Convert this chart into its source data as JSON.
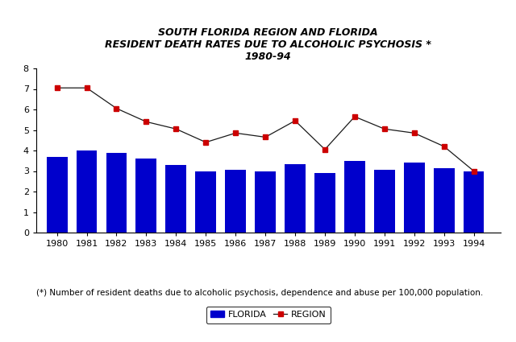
{
  "title_line1": "SOUTH FLORIDA REGION AND FLORIDA",
  "title_line2": "RESIDENT DEATH RATES DUE TO ALCOHOLIC PSYCHOSIS *",
  "title_line3": "1980-94",
  "years": [
    1980,
    1981,
    1982,
    1983,
    1984,
    1985,
    1986,
    1987,
    1988,
    1989,
    1990,
    1991,
    1992,
    1993,
    1994
  ],
  "florida_values": [
    3.7,
    4.0,
    3.9,
    3.6,
    3.3,
    3.0,
    3.05,
    3.0,
    3.35,
    2.9,
    3.5,
    3.05,
    3.4,
    3.15,
    3.0
  ],
  "region_values": [
    7.05,
    7.05,
    6.05,
    5.4,
    5.05,
    4.4,
    4.85,
    4.65,
    5.45,
    4.05,
    5.65,
    5.05,
    4.85,
    4.2,
    3.0
  ],
  "bar_color": "#0000CC",
  "line_color": "#1a1a1a",
  "marker": "s",
  "marker_color": "#CC0000",
  "marker_size": 4,
  "ylim": [
    0,
    8
  ],
  "yticks": [
    0,
    1,
    2,
    3,
    4,
    5,
    6,
    7,
    8
  ],
  "footnote": "(*) Number of resident deaths due to alcoholic psychosis, dependence and abuse per 100,000 population.",
  "legend_florida": "FLORIDA",
  "legend_region": "REGION",
  "background_color": "#ffffff",
  "title_fontsize": 9,
  "tick_fontsize": 8,
  "footnote_fontsize": 7.5
}
